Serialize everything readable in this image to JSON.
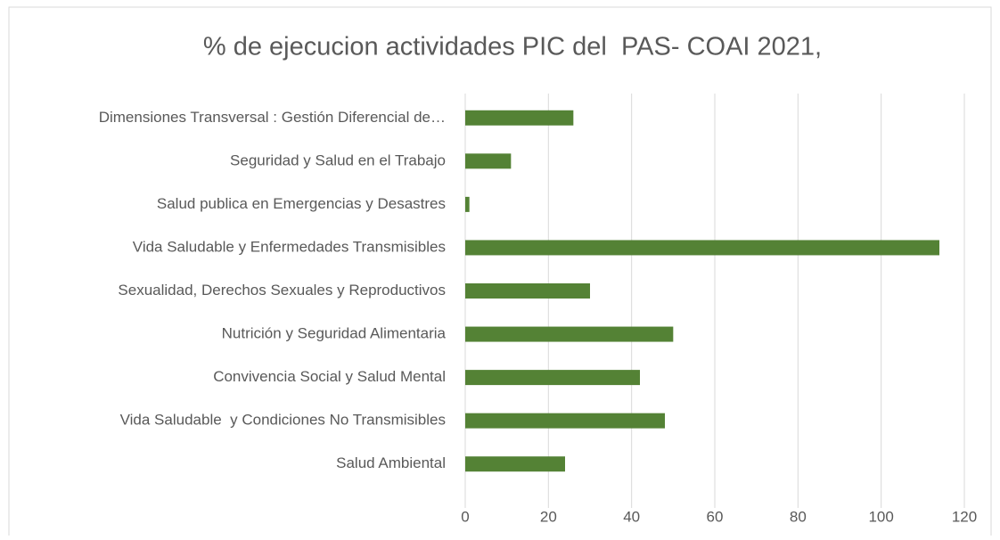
{
  "chart_data": {
    "type": "barh",
    "title": "% de ejecucion actividades PIC del  PAS- COAI 2021,",
    "categories": [
      "Dimensiones Transversal : Gestión Diferencial de…",
      "Seguridad y Salud en el Trabajo",
      "Salud publica en Emergencias y Desastres",
      "Vida Saludable y Enfermedades Transmisibles",
      "Sexualidad, Derechos Sexuales y Reproductivos",
      "Nutrición y Seguridad Alimentaria",
      "Convivencia Social y Salud Mental",
      "Vida Saludable  y Condiciones No Transmisibles",
      "Salud Ambiental"
    ],
    "values": [
      26,
      11,
      1,
      114,
      30,
      50,
      42,
      48,
      24
    ],
    "color": "#548235",
    "xlim": [
      0,
      120
    ],
    "xticks": [
      0,
      20,
      40,
      60,
      80,
      100,
      120
    ],
    "grid": true
  }
}
